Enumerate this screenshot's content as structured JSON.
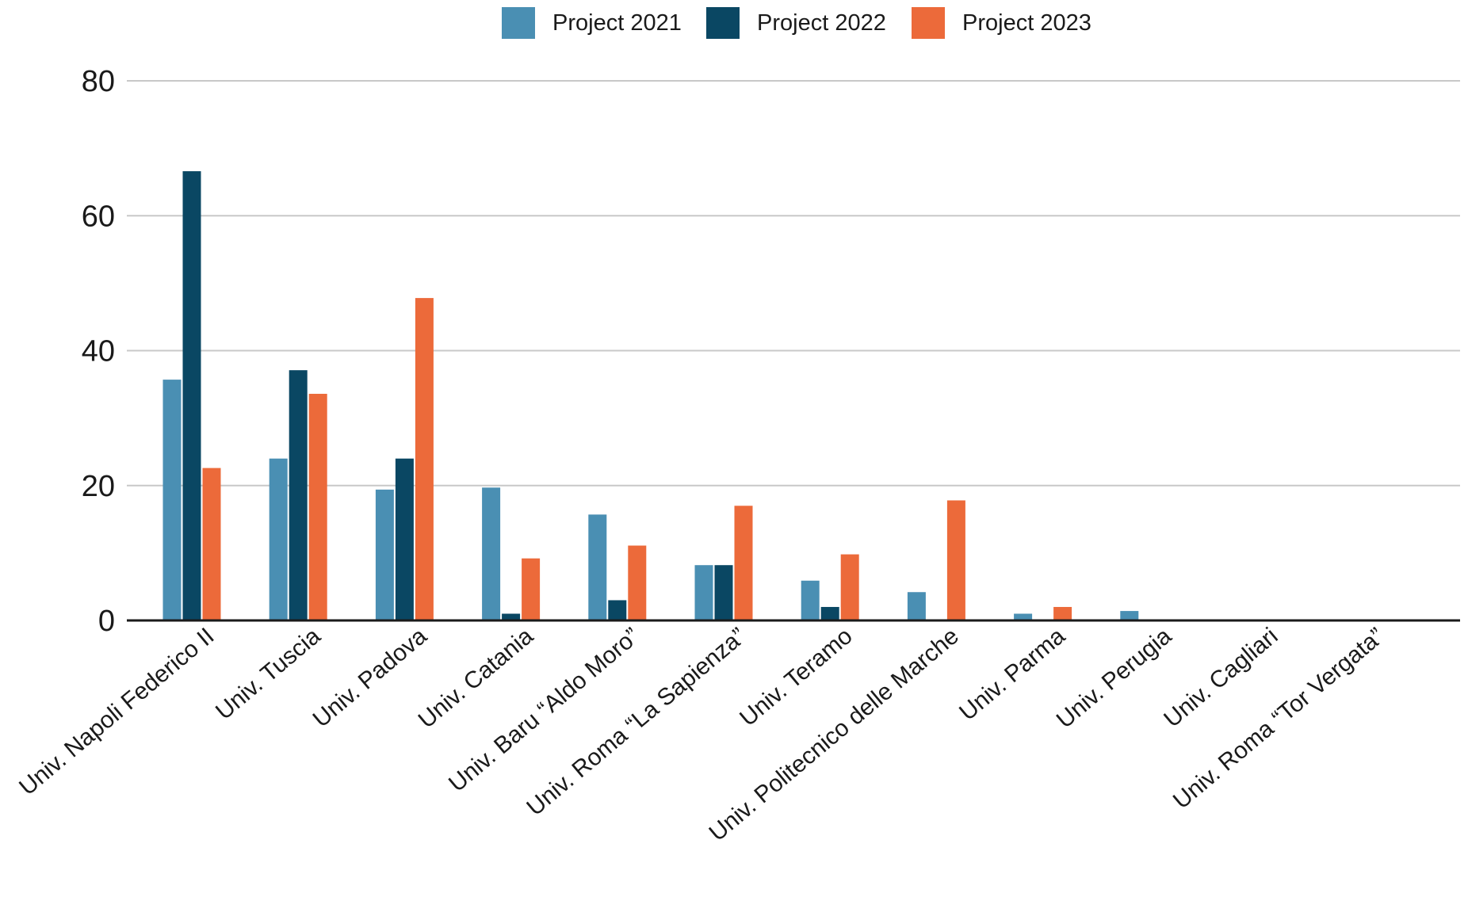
{
  "chart_data": {
    "type": "bar",
    "categories": [
      "Univ. Napoli Federico II",
      "Univ. Tuscia",
      "Univ. Padova",
      "Univ. Catania",
      "Univ. Baru “Aldo Moro”",
      "Univ. Roma “La Sapienza”",
      "Univ. Teramo",
      "Univ. Politecnico delle Marche",
      "Univ. Parma",
      "Univ. Perugia",
      "Univ. Cagliari",
      "Univ. Roma “Tor Vergata”"
    ],
    "series": [
      {
        "name": "Project 2021",
        "color": "#4a8fb3",
        "values": [
          35.7,
          24,
          19.4,
          19.7,
          15.7,
          8.2,
          5.9,
          4.2,
          1.0,
          1.4,
          0,
          0
        ]
      },
      {
        "name": "Project 2022",
        "color": "#0a4763",
        "values": [
          66.6,
          37.1,
          24,
          1.0,
          3.0,
          8.2,
          2.0,
          0,
          0,
          0,
          0,
          0
        ]
      },
      {
        "name": "Project 2023",
        "color": "#ec6a3a",
        "values": [
          22.6,
          33.6,
          47.8,
          9.2,
          11.1,
          17.0,
          9.8,
          17.8,
          2.0,
          0,
          0,
          0
        ]
      }
    ],
    "yticks": [
      0,
      20,
      40,
      60,
      80
    ],
    "ylim": [
      0,
      80
    ],
    "grid": true,
    "legend_position": "top-center"
  }
}
